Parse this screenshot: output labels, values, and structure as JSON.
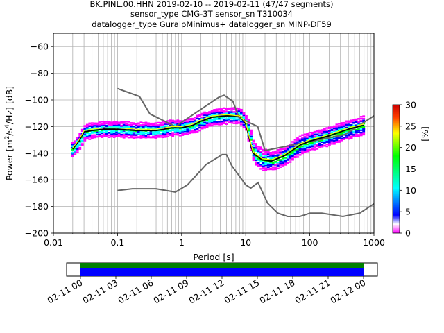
{
  "title": {
    "line1": "BK.PINL.00.HHN   2019-02-10 -- 2019-02-11  (47/47 segments)",
    "line2": "sensor_type CMG-3T sensor_sn T310034",
    "line3": "datalogger_type GuralpMinimus+ datalogger_sn MINP-DF59"
  },
  "chart_data": [
    {
      "type": "heatmap",
      "subtype": "probabilistic power spectral density",
      "xlabel": "Period [s]",
      "ylabel_parts": {
        "pre": "Power [m",
        "sup1": "2",
        "mid": "/s",
        "sup2": "4",
        "post": "/Hz] [dB]"
      },
      "x_scale": "log",
      "xlim": [
        0.01,
        1000
      ],
      "ylim": [
        -200,
        -50
      ],
      "x_ticks": [
        0.01,
        0.1,
        1,
        10,
        100,
        1000
      ],
      "x_tick_labels": [
        "0.01",
        "0.1",
        "1",
        "10",
        "100",
        "1000"
      ],
      "y_ticks": [
        -200,
        -180,
        -160,
        -140,
        -120,
        -100,
        -80,
        -60
      ],
      "y_tick_labels": [
        "−200",
        "−180",
        "−160",
        "−140",
        "−120",
        "−100",
        "−80",
        "−60"
      ],
      "grid": true,
      "noise_model_high": {
        "x": [
          0.1,
          0.22,
          0.32,
          0.8,
          3.8,
          4.6,
          6.3,
          7.9,
          15.4,
          20,
          354.8,
          1000
        ],
        "y": [
          -91.5,
          -97.4,
          -110.5,
          -120,
          -98,
          -96.5,
          -101,
          -113.5,
          -120,
          -138,
          -126,
          -112
        ]
      },
      "noise_model_low": {
        "x": [
          0.1,
          0.17,
          0.4,
          0.8,
          1.24,
          2.4,
          4.3,
          5,
          6,
          10,
          12,
          15.6,
          21.9,
          31.6,
          45,
          70,
          101,
          154,
          328,
          600,
          1000
        ],
        "y": [
          -168,
          -166.7,
          -166.7,
          -169.2,
          -163.7,
          -148.6,
          -141.1,
          -141.1,
          -149,
          -163.8,
          -166.2,
          -162.1,
          -177.5,
          -185,
          -187.5,
          -187.5,
          -185,
          -185,
          -187.5,
          -185,
          -178
        ]
      },
      "mean_curve": {
        "x": [
          0.02,
          0.025,
          0.03,
          0.04,
          0.06,
          0.1,
          0.2,
          0.4,
          0.7,
          1,
          1.5,
          2,
          3,
          5,
          8,
          10,
          13,
          18,
          25,
          40,
          70,
          100,
          200,
          400,
          700
        ],
        "y": [
          -137,
          -131,
          -124,
          -123,
          -122,
          -122,
          -123,
          -123,
          -121,
          -121,
          -119,
          -116,
          -113,
          -112,
          -112,
          -118,
          -140,
          -145,
          -146,
          -142,
          -134,
          -131,
          -127,
          -122,
          -119
        ]
      },
      "mode_curve": {
        "x": [
          0.02,
          0.025,
          0.03,
          0.04,
          0.06,
          0.1,
          0.2,
          0.4,
          0.7,
          1,
          1.5,
          2,
          3,
          5,
          8,
          10,
          13,
          18,
          25,
          40,
          70,
          100,
          200,
          400,
          700
        ],
        "y": [
          -136,
          -130,
          -123,
          -122,
          -121,
          -121,
          -122,
          -122,
          -120,
          -120,
          -118,
          -115,
          -112,
          -111,
          -112,
          -117,
          -139,
          -144,
          -145,
          -141,
          -133,
          -130,
          -126,
          -121,
          -118
        ]
      },
      "colorbar": {
        "label": "[%]",
        "range": [
          0,
          30
        ],
        "ticks": [
          0,
          5,
          10,
          15,
          20,
          25,
          30
        ],
        "tick_labels": [
          "0",
          "5",
          "10",
          "15",
          "20",
          "25",
          "30"
        ],
        "colormap_stops": [
          "#ff00ff",
          "#ffffff",
          "#0000ff",
          "#00ffff",
          "#00ff00",
          "#ffff00",
          "#ff0000",
          "#cc0000"
        ]
      },
      "colors": {
        "noise_model": "#666666",
        "mean": "#000000",
        "mode": "#ffff00",
        "grid": "#b0b0b0"
      }
    },
    {
      "type": "timeline",
      "description_colors": {
        "top": "#008000",
        "bottom": "#0000ff"
      },
      "x_tick_labels": [
        "02-11 00",
        "02-11 03",
        "02-11 06",
        "02-11 09",
        "02-11 12",
        "02-11 15",
        "02-11 18",
        "02-11 21",
        "02-12 00"
      ]
    }
  ]
}
